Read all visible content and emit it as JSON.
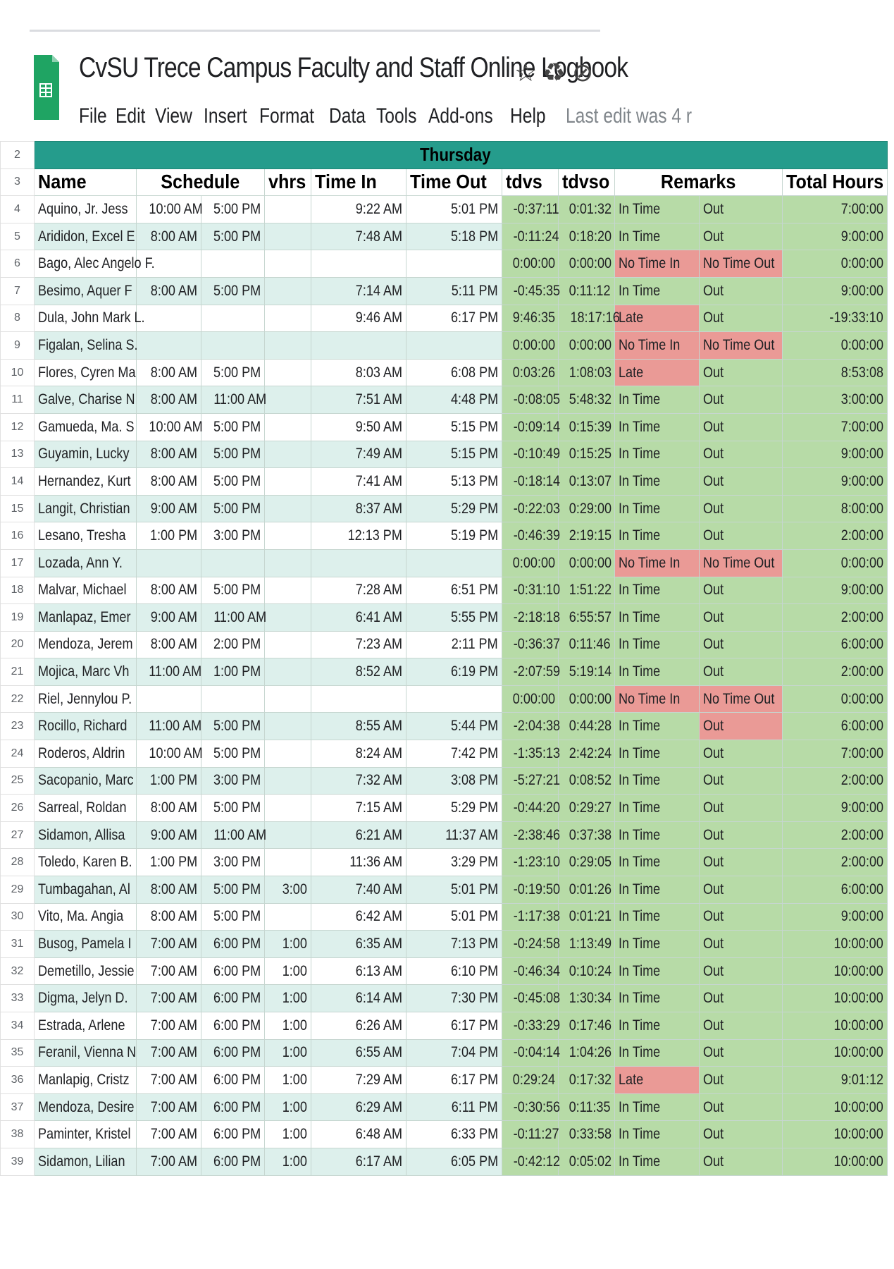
{
  "document": {
    "title": "CvSU Trece Campus Faculty and Staff Online Logbook",
    "title_icons": [
      "star-icon",
      "drive-icon",
      "cloud-status-icon"
    ],
    "last_edit": "Last edit was 4 r"
  },
  "menu": [
    "File",
    "Edit",
    "View",
    "Insert",
    "Format",
    "Data",
    "Tools",
    "Add-ons",
    "Help"
  ],
  "sheet": {
    "day_row_number": "2",
    "day": "Thursday",
    "header_row_number": "3",
    "headers": {
      "name": "Name",
      "schedule": "Schedule",
      "vhrs": "vhrs",
      "time_in": "Time In",
      "time_out": "Time Out",
      "tdvs": "tdvs",
      "tdvso": "tdvso",
      "remarks": "Remarks",
      "total_hours": "Total Hours"
    },
    "colors": {
      "header_teal": "#259c8c",
      "ok_green": "#b7dba7",
      "alert_red": "#ea9a96",
      "band": "#ddf0ec"
    },
    "rows": [
      {
        "row": "4",
        "name": "Aquino, Jr. Jess",
        "s_in": "10:00 AM",
        "s_out": "5:00 PM",
        "vhrs": "",
        "time_in": "9:22 AM",
        "time_out": "5:01 PM",
        "tdvs": "-0:37:11",
        "tdvso": "0:01:32",
        "remark_in": "In Time",
        "remark_out": "Out",
        "total": "7:00:00",
        "flag_in": "ok",
        "flag_out": "ok"
      },
      {
        "row": "5",
        "name": "Arididon, Excel E",
        "s_in": "8:00 AM",
        "s_out": "5:00 PM",
        "vhrs": "",
        "time_in": "7:48 AM",
        "time_out": "5:18 PM",
        "tdvs": "-0:11:24",
        "tdvso": "0:18:20",
        "remark_in": "In Time",
        "remark_out": "Out",
        "total": "9:00:00",
        "flag_in": "ok",
        "flag_out": "ok"
      },
      {
        "row": "6",
        "name": "Bago, Alec Angelo F.",
        "s_in": "",
        "s_out": "",
        "vhrs": "",
        "time_in": "",
        "time_out": "",
        "tdvs": "0:00:00",
        "tdvso": "0:00:00",
        "remark_in": "No Time In",
        "remark_out": "No Time Out",
        "total": "0:00:00",
        "flag_in": "bad",
        "flag_out": "bad"
      },
      {
        "row": "7",
        "name": "Besimo, Aquer F",
        "s_in": "8:00 AM",
        "s_out": "5:00 PM",
        "vhrs": "",
        "time_in": "7:14 AM",
        "time_out": "5:11 PM",
        "tdvs": "-0:45:35",
        "tdvso": "0:11:12",
        "remark_in": "In Time",
        "remark_out": "Out",
        "total": "9:00:00",
        "flag_in": "ok",
        "flag_out": "ok"
      },
      {
        "row": "8",
        "name": "Dula, John Mark L.",
        "s_in": "",
        "s_out": "",
        "vhrs": "",
        "time_in": "9:46 AM",
        "time_out": "6:17 PM",
        "tdvs": "9:46:35",
        "tdvso": "18:17:16",
        "remark_in": "Late",
        "remark_out": "Out",
        "total": "-19:33:10",
        "flag_in": "bad",
        "flag_out": "ok"
      },
      {
        "row": "9",
        "name": "Figalan, Selina S.",
        "s_in": "",
        "s_out": "",
        "vhrs": "",
        "time_in": "",
        "time_out": "",
        "tdvs": "0:00:00",
        "tdvso": "0:00:00",
        "remark_in": "No Time In",
        "remark_out": "No Time Out",
        "total": "0:00:00",
        "flag_in": "bad",
        "flag_out": "bad"
      },
      {
        "row": "10",
        "name": "Flores, Cyren Ma",
        "s_in": "8:00 AM",
        "s_out": "5:00 PM",
        "vhrs": "",
        "time_in": "8:03 AM",
        "time_out": "6:08 PM",
        "tdvs": "0:03:26",
        "tdvso": "1:08:03",
        "remark_in": "Late",
        "remark_out": "Out",
        "total": "8:53:08",
        "flag_in": "bad",
        "flag_out": "ok"
      },
      {
        "row": "11",
        "name": "Galve, Charise N",
        "s_in": "8:00 AM",
        "s_out": "11:00 AM",
        "vhrs": "",
        "time_in": "7:51 AM",
        "time_out": "4:48 PM",
        "tdvs": "-0:08:05",
        "tdvso": "5:48:32",
        "remark_in": "In Time",
        "remark_out": "Out",
        "total": "3:00:00",
        "flag_in": "ok",
        "flag_out": "ok"
      },
      {
        "row": "12",
        "name": "Gamueda, Ma. S",
        "s_in": "10:00 AM",
        "s_out": "5:00 PM",
        "vhrs": "",
        "time_in": "9:50 AM",
        "time_out": "5:15 PM",
        "tdvs": "-0:09:14",
        "tdvso": "0:15:39",
        "remark_in": "In Time",
        "remark_out": "Out",
        "total": "7:00:00",
        "flag_in": "ok",
        "flag_out": "ok"
      },
      {
        "row": "13",
        "name": "Guyamin, Lucky",
        "s_in": "8:00 AM",
        "s_out": "5:00 PM",
        "vhrs": "",
        "time_in": "7:49 AM",
        "time_out": "5:15 PM",
        "tdvs": "-0:10:49",
        "tdvso": "0:15:25",
        "remark_in": "In Time",
        "remark_out": "Out",
        "total": "9:00:00",
        "flag_in": "ok",
        "flag_out": "ok"
      },
      {
        "row": "14",
        "name": "Hernandez, Kurt",
        "s_in": "8:00 AM",
        "s_out": "5:00 PM",
        "vhrs": "",
        "time_in": "7:41 AM",
        "time_out": "5:13 PM",
        "tdvs": "-0:18:14",
        "tdvso": "0:13:07",
        "remark_in": "In Time",
        "remark_out": "Out",
        "total": "9:00:00",
        "flag_in": "ok",
        "flag_out": "ok"
      },
      {
        "row": "15",
        "name": "Langit, Christian",
        "s_in": "9:00 AM",
        "s_out": "5:00 PM",
        "vhrs": "",
        "time_in": "8:37 AM",
        "time_out": "5:29 PM",
        "tdvs": "-0:22:03",
        "tdvso": "0:29:00",
        "remark_in": "In Time",
        "remark_out": "Out",
        "total": "8:00:00",
        "flag_in": "ok",
        "flag_out": "ok"
      },
      {
        "row": "16",
        "name": "Lesano, Tresha",
        "s_in": "1:00 PM",
        "s_out": "3:00 PM",
        "vhrs": "",
        "time_in": "12:13 PM",
        "time_out": "5:19 PM",
        "tdvs": "-0:46:39",
        "tdvso": "2:19:15",
        "remark_in": "In Time",
        "remark_out": "Out",
        "total": "2:00:00",
        "flag_in": "ok",
        "flag_out": "ok"
      },
      {
        "row": "17",
        "name": "Lozada, Ann Y.",
        "s_in": "",
        "s_out": "",
        "vhrs": "",
        "time_in": "",
        "time_out": "",
        "tdvs": "0:00:00",
        "tdvso": "0:00:00",
        "remark_in": "No Time In",
        "remark_out": "No Time Out",
        "total": "0:00:00",
        "flag_in": "bad",
        "flag_out": "bad"
      },
      {
        "row": "18",
        "name": "Malvar, Michael",
        "s_in": "8:00 AM",
        "s_out": "5:00 PM",
        "vhrs": "",
        "time_in": "7:28 AM",
        "time_out": "6:51 PM",
        "tdvs": "-0:31:10",
        "tdvso": "1:51:22",
        "remark_in": "In Time",
        "remark_out": "Out",
        "total": "9:00:00",
        "flag_in": "ok",
        "flag_out": "ok"
      },
      {
        "row": "19",
        "name": "Manlapaz, Emer",
        "s_in": "9:00 AM",
        "s_out": "11:00 AM",
        "vhrs": "",
        "time_in": "6:41 AM",
        "time_out": "5:55 PM",
        "tdvs": "-2:18:18",
        "tdvso": "6:55:57",
        "remark_in": "In Time",
        "remark_out": "Out",
        "total": "2:00:00",
        "flag_in": "ok",
        "flag_out": "ok"
      },
      {
        "row": "20",
        "name": "Mendoza, Jerem",
        "s_in": "8:00 AM",
        "s_out": "2:00 PM",
        "vhrs": "",
        "time_in": "7:23 AM",
        "time_out": "2:11 PM",
        "tdvs": "-0:36:37",
        "tdvso": "0:11:46",
        "remark_in": "In Time",
        "remark_out": "Out",
        "total": "6:00:00",
        "flag_in": "ok",
        "flag_out": "ok"
      },
      {
        "row": "21",
        "name": "Mojica, Marc Vh",
        "s_in": "11:00 AM",
        "s_out": "1:00 PM",
        "vhrs": "",
        "time_in": "8:52 AM",
        "time_out": "6:19 PM",
        "tdvs": "-2:07:59",
        "tdvso": "5:19:14",
        "remark_in": "In Time",
        "remark_out": "Out",
        "total": "2:00:00",
        "flag_in": "ok",
        "flag_out": "ok"
      },
      {
        "row": "22",
        "name": "Riel, Jennylou P.",
        "s_in": "",
        "s_out": "",
        "vhrs": "",
        "time_in": "",
        "time_out": "",
        "tdvs": "0:00:00",
        "tdvso": "0:00:00",
        "remark_in": "No Time In",
        "remark_out": "No Time Out",
        "total": "0:00:00",
        "flag_in": "bad",
        "flag_out": "bad"
      },
      {
        "row": "23",
        "name": "Rocillo, Richard",
        "s_in": "11:00 AM",
        "s_out": "5:00 PM",
        "vhrs": "",
        "time_in": "8:55 AM",
        "time_out": "5:44 PM",
        "tdvs": "-2:04:38",
        "tdvso": "0:44:28",
        "remark_in": "In Time",
        "remark_out": "Out",
        "total": "6:00:00",
        "flag_in": "ok",
        "flag_out": "bad"
      },
      {
        "row": "24",
        "name": "Roderos, Aldrin",
        "s_in": "10:00 AM",
        "s_out": "5:00 PM",
        "vhrs": "",
        "time_in": "8:24 AM",
        "time_out": "7:42 PM",
        "tdvs": "-1:35:13",
        "tdvso": "2:42:24",
        "remark_in": "In Time",
        "remark_out": "Out",
        "total": "7:00:00",
        "flag_in": "ok",
        "flag_out": "ok"
      },
      {
        "row": "25",
        "name": "Sacopanio, Marc",
        "s_in": "1:00 PM",
        "s_out": "3:00 PM",
        "vhrs": "",
        "time_in": "7:32 AM",
        "time_out": "3:08 PM",
        "tdvs": "-5:27:21",
        "tdvso": "0:08:52",
        "remark_in": "In Time",
        "remark_out": "Out",
        "total": "2:00:00",
        "flag_in": "ok",
        "flag_out": "ok"
      },
      {
        "row": "26",
        "name": "Sarreal, Roldan",
        "s_in": "8:00 AM",
        "s_out": "5:00 PM",
        "vhrs": "",
        "time_in": "7:15 AM",
        "time_out": "5:29 PM",
        "tdvs": "-0:44:20",
        "tdvso": "0:29:27",
        "remark_in": "In Time",
        "remark_out": "Out",
        "total": "9:00:00",
        "flag_in": "ok",
        "flag_out": "ok"
      },
      {
        "row": "27",
        "name": "Sidamon, Allisa",
        "s_in": "9:00 AM",
        "s_out": "11:00 AM",
        "vhrs": "",
        "time_in": "6:21 AM",
        "time_out": "11:37 AM",
        "tdvs": "-2:38:46",
        "tdvso": "0:37:38",
        "remark_in": "In Time",
        "remark_out": "Out",
        "total": "2:00:00",
        "flag_in": "ok",
        "flag_out": "ok"
      },
      {
        "row": "28",
        "name": "Toledo, Karen B.",
        "s_in": "1:00 PM",
        "s_out": "3:00 PM",
        "vhrs": "",
        "time_in": "11:36 AM",
        "time_out": "3:29 PM",
        "tdvs": "-1:23:10",
        "tdvso": "0:29:05",
        "remark_in": "In Time",
        "remark_out": "Out",
        "total": "2:00:00",
        "flag_in": "ok",
        "flag_out": "ok"
      },
      {
        "row": "29",
        "name": "Tumbagahan, Al",
        "s_in": "8:00 AM",
        "s_out": "5:00 PM",
        "vhrs": "3:00",
        "time_in": "7:40 AM",
        "time_out": "5:01 PM",
        "tdvs": "-0:19:50",
        "tdvso": "0:01:26",
        "remark_in": "In Time",
        "remark_out": "Out",
        "total": "6:00:00",
        "flag_in": "ok",
        "flag_out": "ok"
      },
      {
        "row": "30",
        "name": "Vito, Ma. Angia",
        "s_in": "8:00 AM",
        "s_out": "5:00 PM",
        "vhrs": "",
        "time_in": "6:42 AM",
        "time_out": "5:01 PM",
        "tdvs": "-1:17:38",
        "tdvso": "0:01:21",
        "remark_in": "In Time",
        "remark_out": "Out",
        "total": "9:00:00",
        "flag_in": "ok",
        "flag_out": "ok"
      },
      {
        "row": "31",
        "name": "Busog, Pamela I",
        "s_in": "7:00 AM",
        "s_out": "6:00 PM",
        "vhrs": "1:00",
        "time_in": "6:35 AM",
        "time_out": "7:13 PM",
        "tdvs": "-0:24:58",
        "tdvso": "1:13:49",
        "remark_in": "In Time",
        "remark_out": "Out",
        "total": "10:00:00",
        "flag_in": "ok",
        "flag_out": "ok"
      },
      {
        "row": "32",
        "name": "Demetillo, Jessie",
        "s_in": "7:00 AM",
        "s_out": "6:00 PM",
        "vhrs": "1:00",
        "time_in": "6:13 AM",
        "time_out": "6:10 PM",
        "tdvs": "-0:46:34",
        "tdvso": "0:10:24",
        "remark_in": "In Time",
        "remark_out": "Out",
        "total": "10:00:00",
        "flag_in": "ok",
        "flag_out": "ok"
      },
      {
        "row": "33",
        "name": "Digma, Jelyn D.",
        "s_in": "7:00 AM",
        "s_out": "6:00 PM",
        "vhrs": "1:00",
        "time_in": "6:14 AM",
        "time_out": "7:30 PM",
        "tdvs": "-0:45:08",
        "tdvso": "1:30:34",
        "remark_in": "In Time",
        "remark_out": "Out",
        "total": "10:00:00",
        "flag_in": "ok",
        "flag_out": "ok"
      },
      {
        "row": "34",
        "name": "Estrada, Arlene",
        "s_in": "7:00 AM",
        "s_out": "6:00 PM",
        "vhrs": "1:00",
        "time_in": "6:26 AM",
        "time_out": "6:17 PM",
        "tdvs": "-0:33:29",
        "tdvso": "0:17:46",
        "remark_in": "In Time",
        "remark_out": "Out",
        "total": "10:00:00",
        "flag_in": "ok",
        "flag_out": "ok"
      },
      {
        "row": "35",
        "name": "Feranil, Vienna N",
        "s_in": "7:00 AM",
        "s_out": "6:00 PM",
        "vhrs": "1:00",
        "time_in": "6:55 AM",
        "time_out": "7:04 PM",
        "tdvs": "-0:04:14",
        "tdvso": "1:04:26",
        "remark_in": "In Time",
        "remark_out": "Out",
        "total": "10:00:00",
        "flag_in": "ok",
        "flag_out": "ok"
      },
      {
        "row": "36",
        "name": "Manlapig, Cristz",
        "s_in": "7:00 AM",
        "s_out": "6:00 PM",
        "vhrs": "1:00",
        "time_in": "7:29 AM",
        "time_out": "6:17 PM",
        "tdvs": "0:29:24",
        "tdvso": "0:17:32",
        "remark_in": "Late",
        "remark_out": "Out",
        "total": "9:01:12",
        "flag_in": "bad",
        "flag_out": "ok"
      },
      {
        "row": "37",
        "name": "Mendoza, Desire",
        "s_in": "7:00 AM",
        "s_out": "6:00 PM",
        "vhrs": "1:00",
        "time_in": "6:29 AM",
        "time_out": "6:11 PM",
        "tdvs": "-0:30:56",
        "tdvso": "0:11:35",
        "remark_in": "In Time",
        "remark_out": "Out",
        "total": "10:00:00",
        "flag_in": "ok",
        "flag_out": "ok"
      },
      {
        "row": "38",
        "name": "Paminter, Kristel",
        "s_in": "7:00 AM",
        "s_out": "6:00 PM",
        "vhrs": "1:00",
        "time_in": "6:48 AM",
        "time_out": "6:33 PM",
        "tdvs": "-0:11:27",
        "tdvso": "0:33:58",
        "remark_in": "In Time",
        "remark_out": "Out",
        "total": "10:00:00",
        "flag_in": "ok",
        "flag_out": "ok"
      },
      {
        "row": "39",
        "name": "Sidamon, Lilian",
        "s_in": "7:00 AM",
        "s_out": "6:00 PM",
        "vhrs": "1:00",
        "time_in": "6:17 AM",
        "time_out": "6:05 PM",
        "tdvs": "-0:42:12",
        "tdvso": "0:05:02",
        "remark_in": "In Time",
        "remark_out": "Out",
        "total": "10:00:00",
        "flag_in": "ok",
        "flag_out": "ok"
      }
    ]
  }
}
